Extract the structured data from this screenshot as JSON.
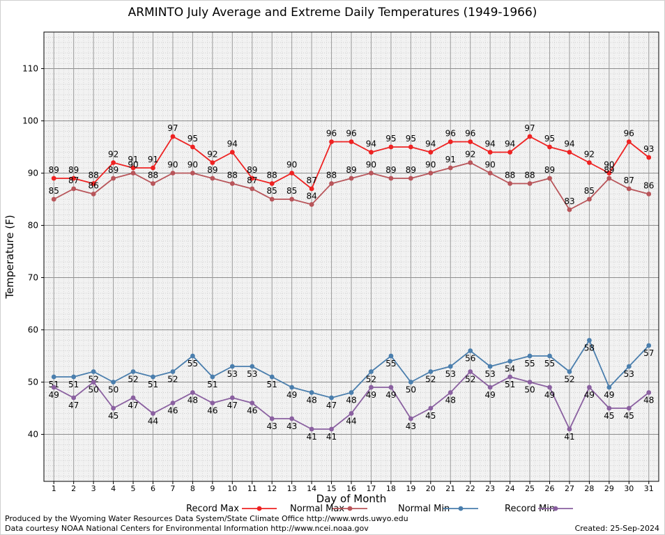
{
  "title": "ARMINTO July Average and Extreme Daily Temperatures (1949-1966)",
  "footer": {
    "line1": "Produced by the Wyoming Water Resources Data System/State Climate Office http://www.wrds.uwyo.edu",
    "line2": "Data courtesy NOAA National Centers for Environmental Information http://www.ncei.noaa.gov",
    "created": "Created:  25-Sep-2024"
  },
  "chart_data": {
    "type": "line",
    "title": "ARMINTO July Average and Extreme Daily Temperatures (1949-1966)",
    "xlabel": "Day of Month",
    "ylabel": "Temperature (F)",
    "x": [
      1,
      2,
      3,
      4,
      5,
      6,
      7,
      8,
      9,
      10,
      11,
      12,
      13,
      14,
      15,
      16,
      17,
      18,
      19,
      20,
      21,
      22,
      23,
      24,
      25,
      26,
      27,
      28,
      29,
      30,
      31
    ],
    "xlim": [
      0.5,
      31.5
    ],
    "ylim": [
      31,
      117
    ],
    "yticks": [
      40,
      50,
      60,
      70,
      80,
      90,
      100,
      110
    ],
    "grid": true,
    "legend_position": "bottom",
    "series": [
      {
        "name": "Record Max",
        "color": "#ee2222",
        "values": [
          89,
          89,
          88,
          92,
          91,
          91,
          97,
          95,
          92,
          94,
          89,
          88,
          90,
          87,
          96,
          96,
          94,
          95,
          95,
          94,
          96,
          96,
          94,
          94,
          97,
          95,
          94,
          92,
          90,
          96,
          93
        ]
      },
      {
        "name": "Normal Max",
        "color": "#b8555a",
        "values": [
          85,
          87,
          86,
          89,
          90,
          88,
          90,
          90,
          89,
          88,
          87,
          85,
          85,
          84,
          88,
          89,
          90,
          89,
          89,
          90,
          91,
          92,
          90,
          88,
          88,
          89,
          83,
          85,
          89,
          87,
          86
        ]
      },
      {
        "name": "Normal Min",
        "color": "#4a7ead",
        "values": [
          51,
          51,
          52,
          50,
          52,
          51,
          52,
          55,
          51,
          53,
          53,
          51,
          49,
          48,
          47,
          48,
          52,
          55,
          50,
          52,
          53,
          56,
          53,
          54,
          55,
          55,
          52,
          58,
          49,
          53,
          57
        ]
      },
      {
        "name": "Record Min",
        "color": "#8a60a0",
        "values": [
          49,
          47,
          50,
          45,
          47,
          44,
          46,
          48,
          46,
          47,
          46,
          43,
          43,
          41,
          41,
          44,
          49,
          49,
          43,
          45,
          48,
          52,
          49,
          51,
          50,
          49,
          41,
          49,
          45,
          45,
          48
        ]
      }
    ]
  }
}
